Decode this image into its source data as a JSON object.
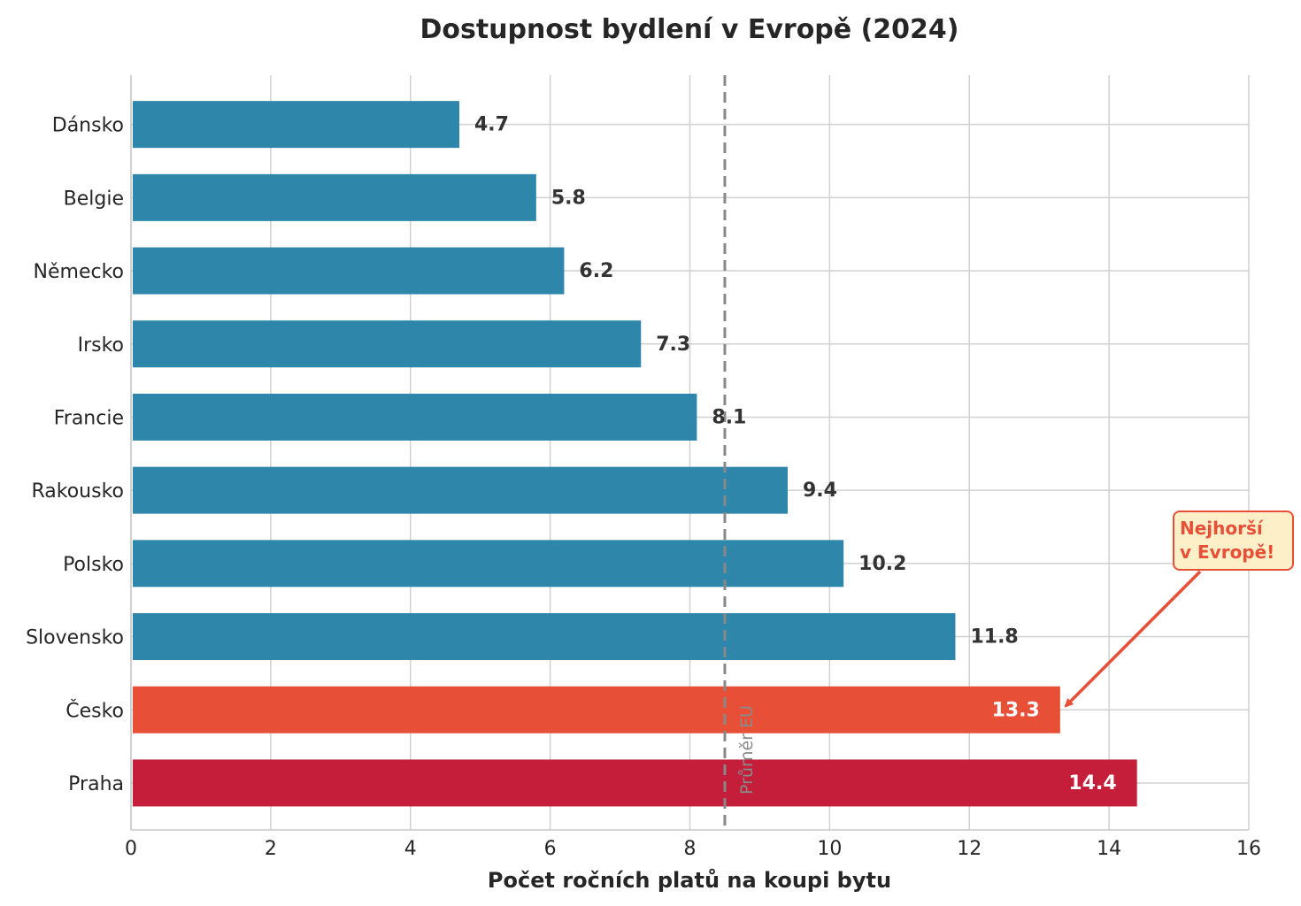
{
  "chart_data": {
    "type": "bar",
    "orientation": "horizontal",
    "title": "Dostupnost bydlení v Evropě (2024)",
    "xlabel": "Počet ročních platů na koupi bytu",
    "ylabel": "",
    "xlim": [
      0,
      16
    ],
    "xticks": [
      0,
      2,
      4,
      6,
      8,
      10,
      12,
      14,
      16
    ],
    "grid": true,
    "categories": [
      "Dánsko",
      "Belgie",
      "Německo",
      "Irsko",
      "Francie",
      "Rakousko",
      "Polsko",
      "Slovensko",
      "Česko",
      "Praha"
    ],
    "values": [
      4.7,
      5.8,
      6.2,
      7.3,
      8.1,
      9.4,
      10.2,
      11.8,
      13.3,
      14.4
    ],
    "value_labels": [
      "4.7",
      "5.8",
      "6.2",
      "7.3",
      "8.1",
      "9.4",
      "10.2",
      "11.8",
      "13.3",
      "14.4"
    ],
    "bar_colors": [
      "#2e86ab",
      "#2e86ab",
      "#2e86ab",
      "#2e86ab",
      "#2e86ab",
      "#2e86ab",
      "#2e86ab",
      "#2e86ab",
      "#e74f37",
      "#c41e3a"
    ],
    "reference_line": {
      "value": 8.5,
      "label": "Průměr EU",
      "color": "#888888",
      "style": "dashed"
    },
    "annotation": {
      "lines": [
        "Nejhorší",
        "v Evropě!"
      ],
      "target_category": "Česko",
      "color": "#e74f37",
      "box_fill": "#fdf0c8"
    }
  }
}
